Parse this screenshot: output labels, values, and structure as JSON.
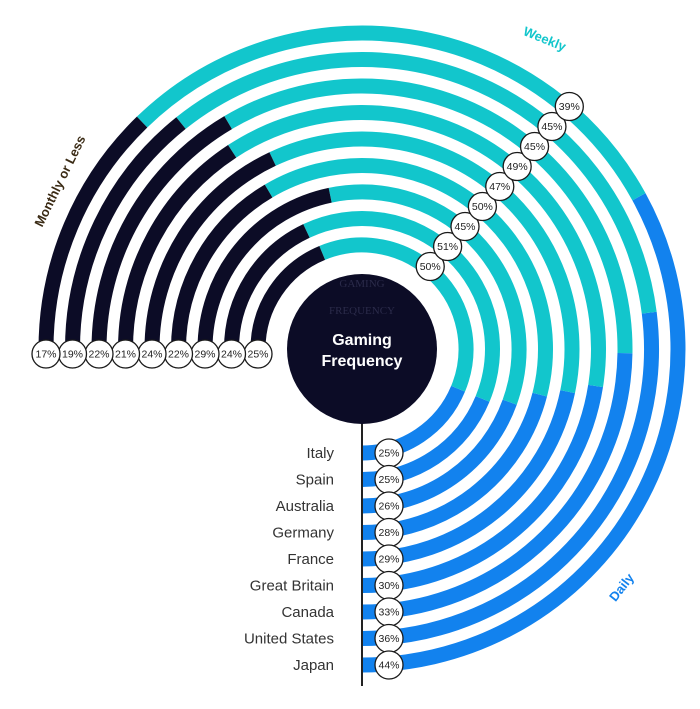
{
  "chart_data": {
    "type": "radial-stacked-bar",
    "title": "Gaming Frequency",
    "ghost_title": [
      "GAMING",
      "FREQUENCY"
    ],
    "legend": {
      "monthly": "Monthly or Less",
      "weekly": "Weekly",
      "daily": "Daily"
    },
    "colors": {
      "monthly": "#0c0c26",
      "weekly": "#12c6cc",
      "daily": "#1282ee",
      "center": "#0c0c26"
    },
    "categories": [
      "Italy",
      "Spain",
      "Australia",
      "Germany",
      "France",
      "Great Britain",
      "Canada",
      "United States",
      "Japan"
    ],
    "series": [
      {
        "name": "Daily",
        "values": [
          25,
          25,
          26,
          28,
          29,
          30,
          33,
          36,
          44
        ]
      },
      {
        "name": "Weekly",
        "values": [
          50,
          51,
          45,
          50,
          47,
          49,
          45,
          45,
          39
        ]
      },
      {
        "name": "Monthly or Less",
        "values": [
          25,
          24,
          29,
          22,
          24,
          21,
          22,
          19,
          17
        ]
      }
    ],
    "value_labels": {
      "daily": [
        "25%",
        "25%",
        "26%",
        "28%",
        "29%",
        "30%",
        "33%",
        "36%",
        "44%"
      ],
      "weekly": [
        "50%",
        "51%",
        "45%",
        "50%",
        "47%",
        "49%",
        "45%",
        "45%",
        "39%"
      ],
      "monthly": [
        "25%",
        "24%",
        "29%",
        "22%",
        "24%",
        "21%",
        "22%",
        "19%",
        "17%"
      ]
    }
  }
}
